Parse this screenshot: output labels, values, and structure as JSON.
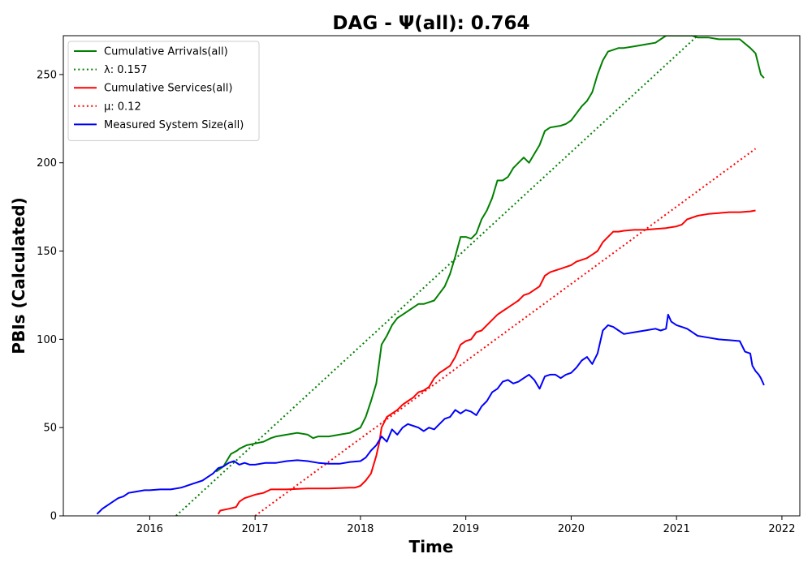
{
  "chart_data": {
    "type": "line",
    "title": "DAG -  Ψ(all): 0.764",
    "xlabel": "Time",
    "ylabel": "PBIs (Calculated)",
    "xlim": [
      2015.18,
      2022.17
    ],
    "ylim": [
      0,
      272
    ],
    "x_ticks": [
      {
        "value": 2016,
        "label": "2016"
      },
      {
        "value": 2017,
        "label": "2017"
      },
      {
        "value": 2018,
        "label": "2018"
      },
      {
        "value": 2019,
        "label": "2019"
      },
      {
        "value": 2020,
        "label": "2020"
      },
      {
        "value": 2021,
        "label": "2021"
      },
      {
        "value": 2022,
        "label": "2022"
      }
    ],
    "y_ticks": [
      {
        "value": 0,
        "label": "0"
      },
      {
        "value": 50,
        "label": "50"
      },
      {
        "value": 100,
        "label": "100"
      },
      {
        "value": 150,
        "label": "150"
      },
      {
        "value": 200,
        "label": "200"
      },
      {
        "value": 250,
        "label": "250"
      }
    ],
    "grid": false,
    "legend_position": "top-left",
    "series": [
      {
        "name": "Cumulative Arrivals(all)",
        "color": "#008000",
        "style": "solid",
        "x": [
          2016.63,
          2016.7,
          2016.73,
          2016.77,
          2016.83,
          2016.85,
          2016.92,
          2017.0,
          2017.08,
          2017.15,
          2017.2,
          2017.3,
          2017.4,
          2017.5,
          2017.55,
          2017.6,
          2017.7,
          2017.8,
          2017.9,
          2018.0,
          2018.05,
          2018.1,
          2018.15,
          2018.18,
          2018.2,
          2018.25,
          2018.3,
          2018.35,
          2018.4,
          2018.5,
          2018.55,
          2018.6,
          2018.7,
          2018.75,
          2018.8,
          2018.85,
          2018.9,
          2018.95,
          2019.0,
          2019.05,
          2019.1,
          2019.15,
          2019.2,
          2019.25,
          2019.3,
          2019.35,
          2019.4,
          2019.45,
          2019.5,
          2019.55,
          2019.6,
          2019.65,
          2019.7,
          2019.75,
          2019.8,
          2019.9,
          2019.95,
          2020.0,
          2020.05,
          2020.1,
          2020.15,
          2020.2,
          2020.25,
          2020.3,
          2020.35,
          2020.4,
          2020.45,
          2020.5,
          2020.6,
          2020.7,
          2020.8,
          2020.9,
          2020.95,
          2021.0,
          2021.05,
          2021.1,
          2021.15,
          2021.2,
          2021.3,
          2021.4,
          2021.5,
          2021.6,
          2021.7,
          2021.75,
          2021.8,
          2021.83
        ],
        "y": [
          25,
          28,
          31,
          35,
          37,
          38,
          40,
          41,
          42,
          44,
          45,
          46,
          47,
          46,
          44,
          45,
          45,
          46,
          47,
          50,
          56,
          65,
          75,
          88,
          97,
          102,
          108,
          112,
          114,
          118,
          120,
          120,
          122,
          126,
          130,
          137,
          147,
          158,
          158,
          157,
          160,
          168,
          173,
          180,
          190,
          190,
          192,
          197,
          200,
          203,
          200,
          205,
          210,
          218,
          220,
          221,
          222,
          224,
          228,
          232,
          235,
          240,
          250,
          258,
          263,
          264,
          265,
          265,
          266,
          267,
          268,
          272,
          272,
          272,
          272,
          272,
          272,
          271,
          271,
          270,
          270,
          270,
          265,
          262,
          250,
          248
        ]
      },
      {
        "name": "λ: 0.157",
        "color": "#008000",
        "style": "dotted",
        "x": [
          2016.25,
          2021.2
        ],
        "y": [
          0,
          272
        ]
      },
      {
        "name": "Cumulative Services(all)",
        "color": "#ff0000",
        "style": "solid",
        "x": [
          2016.65,
          2016.67,
          2016.75,
          2016.82,
          2016.85,
          2016.9,
          2017.0,
          2017.08,
          2017.15,
          2017.3,
          2017.5,
          2017.7,
          2017.9,
          2017.95,
          2018.0,
          2018.05,
          2018.1,
          2018.15,
          2018.18,
          2018.2,
          2018.25,
          2018.3,
          2018.35,
          2018.4,
          2018.45,
          2018.5,
          2018.55,
          2018.6,
          2018.65,
          2018.7,
          2018.75,
          2018.8,
          2018.85,
          2018.9,
          2018.95,
          2019.0,
          2019.05,
          2019.1,
          2019.15,
          2019.2,
          2019.25,
          2019.3,
          2019.35,
          2019.4,
          2019.45,
          2019.5,
          2019.55,
          2019.6,
          2019.65,
          2019.7,
          2019.75,
          2019.8,
          2019.9,
          2020.0,
          2020.05,
          2020.1,
          2020.15,
          2020.2,
          2020.25,
          2020.3,
          2020.35,
          2020.4,
          2020.45,
          2020.5,
          2020.6,
          2020.7,
          2020.8,
          2020.9,
          2021.0,
          2021.05,
          2021.1,
          2021.2,
          2021.3,
          2021.4,
          2021.5,
          2021.6,
          2021.7,
          2021.75
        ],
        "y": [
          1,
          3,
          4,
          5,
          8,
          10,
          12,
          13,
          15,
          15,
          15.5,
          15.5,
          16,
          16,
          17,
          20,
          24,
          34,
          42,
          50,
          56,
          58,
          60,
          63,
          65,
          67,
          70,
          71,
          73,
          78,
          81,
          83,
          85,
          90,
          97,
          99,
          100,
          104,
          105,
          108,
          111,
          114,
          116,
          118,
          120,
          122,
          125,
          126,
          128,
          130,
          136,
          138,
          140,
          142,
          144,
          145,
          146,
          148,
          150,
          155,
          158,
          161,
          161,
          161.5,
          162,
          162,
          162.5,
          163,
          164,
          165,
          168,
          170,
          171,
          171.5,
          172,
          172,
          172.5,
          173
        ]
      },
      {
        "name": "μ: 0.12",
        "color": "#ff0000",
        "style": "dotted",
        "x": [
          2017.0,
          2021.75
        ],
        "y": [
          0,
          208
        ]
      },
      {
        "name": "Measured System Size(all)",
        "color": "#0000ff",
        "style": "solid",
        "x": [
          2015.5,
          2015.55,
          2015.6,
          2015.65,
          2015.7,
          2015.75,
          2015.8,
          2015.85,
          2015.9,
          2015.95,
          2016.0,
          2016.1,
          2016.2,
          2016.3,
          2016.4,
          2016.5,
          2016.6,
          2016.65,
          2016.7,
          2016.75,
          2016.8,
          2016.85,
          2016.9,
          2016.95,
          2017.0,
          2017.1,
          2017.2,
          2017.3,
          2017.4,
          2017.5,
          2017.6,
          2017.7,
          2017.8,
          2017.9,
          2018.0,
          2018.05,
          2018.1,
          2018.15,
          2018.2,
          2018.25,
          2018.3,
          2018.35,
          2018.4,
          2018.45,
          2018.5,
          2018.55,
          2018.6,
          2018.65,
          2018.7,
          2018.75,
          2018.8,
          2018.85,
          2018.9,
          2018.95,
          2019.0,
          2019.05,
          2019.1,
          2019.15,
          2019.2,
          2019.25,
          2019.3,
          2019.35,
          2019.4,
          2019.45,
          2019.5,
          2019.55,
          2019.6,
          2019.65,
          2019.7,
          2019.75,
          2019.8,
          2019.85,
          2019.9,
          2019.95,
          2020.0,
          2020.05,
          2020.1,
          2020.15,
          2020.2,
          2020.25,
          2020.3,
          2020.35,
          2020.4,
          2020.45,
          2020.5,
          2020.6,
          2020.7,
          2020.8,
          2020.85,
          2020.9,
          2020.92,
          2020.95,
          2021.0,
          2021.05,
          2021.1,
          2021.15,
          2021.2,
          2021.3,
          2021.4,
          2021.5,
          2021.6,
          2021.65,
          2021.7,
          2021.72,
          2021.75,
          2021.78,
          2021.8,
          2021.83
        ],
        "y": [
          1,
          4,
          6,
          8,
          10,
          11,
          13,
          13.5,
          14,
          14.5,
          14.5,
          15,
          15,
          16,
          18,
          20,
          24,
          27,
          28,
          30,
          31,
          29,
          30,
          29,
          29,
          30,
          30,
          31,
          31.5,
          31,
          30,
          29.5,
          29.5,
          30.5,
          31,
          33,
          37,
          40,
          45,
          42,
          49,
          46,
          50,
          52,
          51,
          50,
          48,
          50,
          49,
          52,
          55,
          56,
          60,
          58,
          60,
          59,
          57,
          62,
          65,
          70,
          72,
          76,
          77,
          75,
          76,
          78,
          80,
          77,
          72,
          79,
          80,
          80,
          78,
          80,
          81,
          84,
          88,
          90,
          86,
          92,
          105,
          108,
          107,
          105,
          103,
          104,
          105,
          106,
          105,
          106,
          114,
          110,
          108,
          107,
          106,
          104,
          102,
          101,
          100,
          99.5,
          99,
          93,
          92,
          85,
          82,
          80,
          78,
          74
        ]
      }
    ]
  }
}
